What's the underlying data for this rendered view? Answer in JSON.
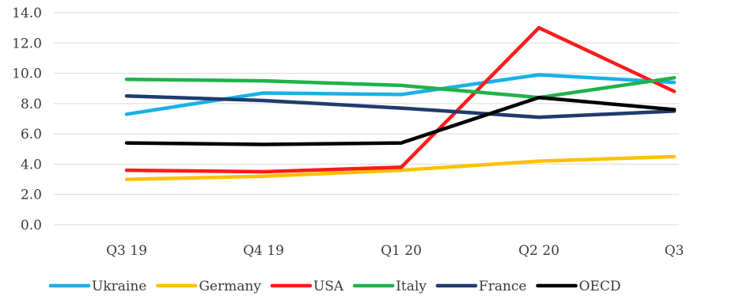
{
  "chart_data": {
    "type": "line",
    "categories": [
      "Q3 19",
      "Q4 19",
      "Q1 20",
      "Q2 20",
      "Q3"
    ],
    "ylim": [
      0,
      14
    ],
    "yticks": [
      "0.0",
      "2.0",
      "4.0",
      "6.0",
      "8.0",
      "10.0",
      "12.0",
      "14.0"
    ],
    "grid": true,
    "legend_position": "bottom",
    "series": [
      {
        "name": "Ukraine",
        "color": "#1ab0e8",
        "values": [
          7.3,
          8.7,
          8.6,
          9.9,
          9.4
        ]
      },
      {
        "name": "Germany",
        "color": "#ffc000",
        "values": [
          3.0,
          3.2,
          3.6,
          4.2,
          4.5
        ]
      },
      {
        "name": "USA",
        "color": "#ff1a1a",
        "values": [
          3.6,
          3.5,
          3.8,
          13.0,
          8.8
        ]
      },
      {
        "name": "Italy",
        "color": "#1fb24a",
        "values": [
          9.6,
          9.5,
          9.2,
          8.4,
          9.7
        ]
      },
      {
        "name": "France",
        "color": "#1f3b6e",
        "values": [
          8.5,
          8.2,
          7.7,
          7.1,
          7.5
        ]
      },
      {
        "name": "OECD",
        "color": "#000000",
        "values": [
          5.4,
          5.3,
          5.4,
          8.4,
          7.6
        ]
      }
    ]
  }
}
